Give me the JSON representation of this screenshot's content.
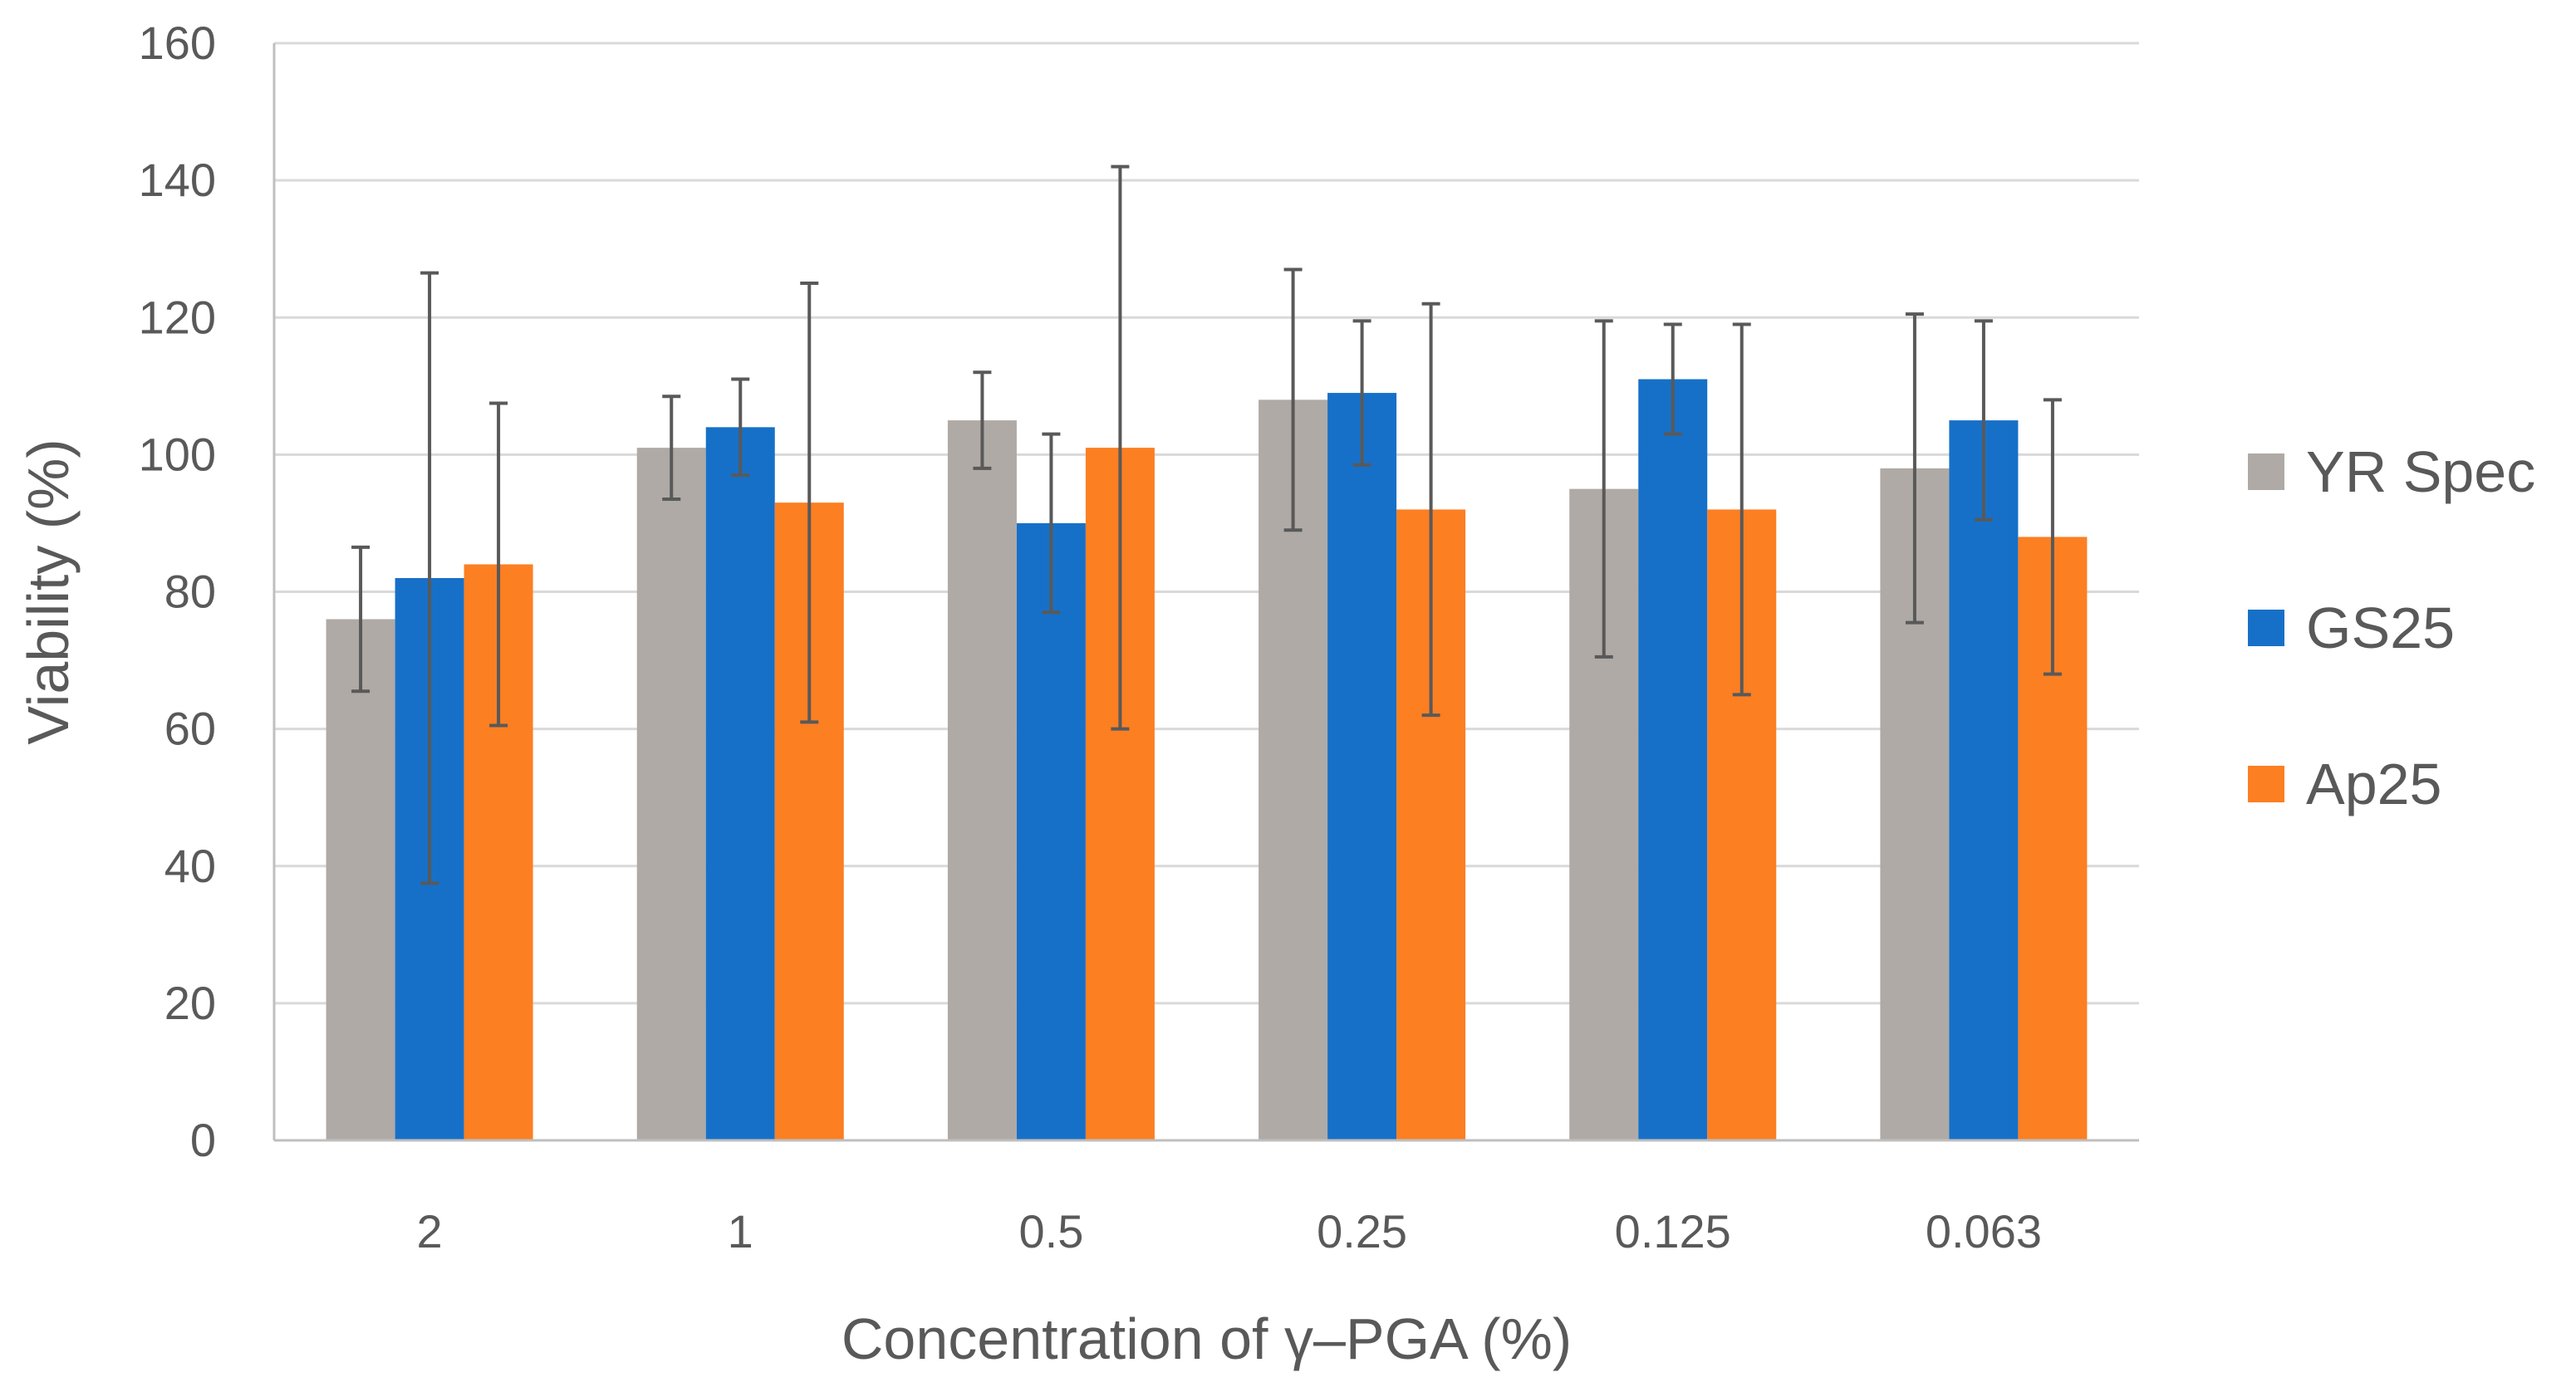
{
  "chart_data": {
    "type": "bar",
    "title": "",
    "xlabel": "Concentration of γ–PGA (%)",
    "ylabel": "Viability (%)",
    "ylim": [
      0,
      160
    ],
    "yticks": [
      0,
      20,
      40,
      60,
      80,
      100,
      120,
      140,
      160
    ],
    "grid": true,
    "legend_position": "right",
    "categories": [
      "2",
      "1",
      "0.5",
      "0.25",
      "0.125",
      "0.063"
    ],
    "series": [
      {
        "name": "YR Spec",
        "color": "#afaaa6",
        "values": [
          76,
          101,
          105,
          108,
          95,
          98
        ],
        "error": [
          10.5,
          7.5,
          7,
          19,
          24.5,
          22.5
        ]
      },
      {
        "name": "GS25",
        "color": "#1770c8",
        "values": [
          82,
          104,
          90,
          109,
          111,
          105
        ],
        "error": [
          44.5,
          7,
          13,
          10.5,
          8,
          14.5
        ]
      },
      {
        "name": "Ap25",
        "color": "#fc7f22",
        "values": [
          84,
          93,
          101,
          92,
          92,
          88
        ],
        "error": [
          23.5,
          32,
          41,
          30,
          27,
          20
        ]
      }
    ]
  }
}
